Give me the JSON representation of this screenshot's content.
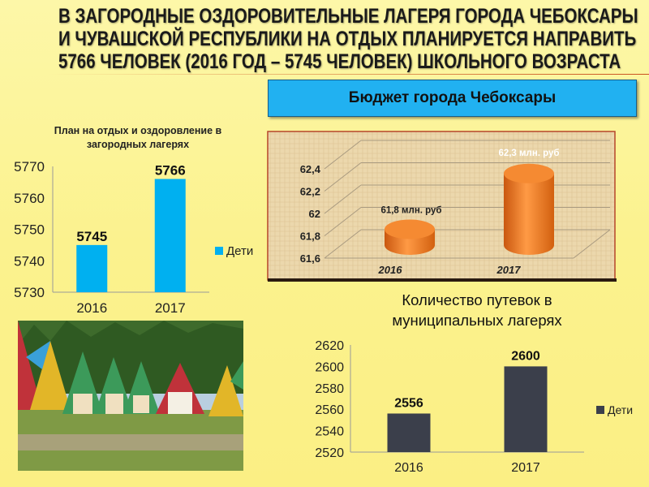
{
  "title_lines": [
    "В ЗАГОРОДНЫЕ ОЗДОРОВИТЕЛЬНЫЕ ЛАГЕРЯ ГОРОДА ЧЕБОКСАРЫ",
    "И ЧУВАШСКОЙ РЕСПУБЛИКИ НА ОТДЫХ ПЛАНИРУЕТСЯ НАПРАВИТЬ",
    "5766 ЧЕЛОВЕК (2016 ГОД – 5745 ЧЕЛОВЕК) ШКОЛЬНОГО ВОЗРАСТА"
  ],
  "budget_label": "Бюджет города Чебоксары",
  "chart_data": [
    {
      "type": "bar",
      "title_lines": [
        "План на отдых и оздоровление в",
        "загородных лагерях"
      ],
      "categories": [
        "2016",
        "2017"
      ],
      "series": [
        {
          "name": "Дети",
          "values": [
            5745,
            5766
          ],
          "color": "#00b0f0"
        }
      ],
      "data_labels": [
        "5745",
        "5766"
      ],
      "ylim": [
        5730,
        5770
      ],
      "yticks": [
        "5730",
        "5740",
        "5750",
        "5760",
        "5770"
      ],
      "legend": "right"
    },
    {
      "type": "bar",
      "style": "3d-cylinder",
      "categories": [
        "2016",
        "2017"
      ],
      "values": [
        61.8,
        62.3
      ],
      "data_labels": [
        "61,8 млн. руб",
        "62,3 млн. руб"
      ],
      "ylim": [
        61.6,
        62.4
      ],
      "yticks": [
        "61,6",
        "61,8",
        "62",
        "62,2",
        "62,4"
      ],
      "color": "#f07f22",
      "grid": true
    },
    {
      "type": "bar",
      "title_lines": [
        "Количество путевок в",
        "муниципальных лагерях"
      ],
      "categories": [
        "2016",
        "2017"
      ],
      "series": [
        {
          "name": "Дети",
          "values": [
            2556,
            2600
          ],
          "color": "#3b3f4b"
        }
      ],
      "data_labels": [
        "2556",
        "2600"
      ],
      "ylim": [
        2520,
        2620
      ],
      "yticks": [
        "2520",
        "2540",
        "2560",
        "2580",
        "2600",
        "2620"
      ],
      "legend": "right"
    }
  ]
}
